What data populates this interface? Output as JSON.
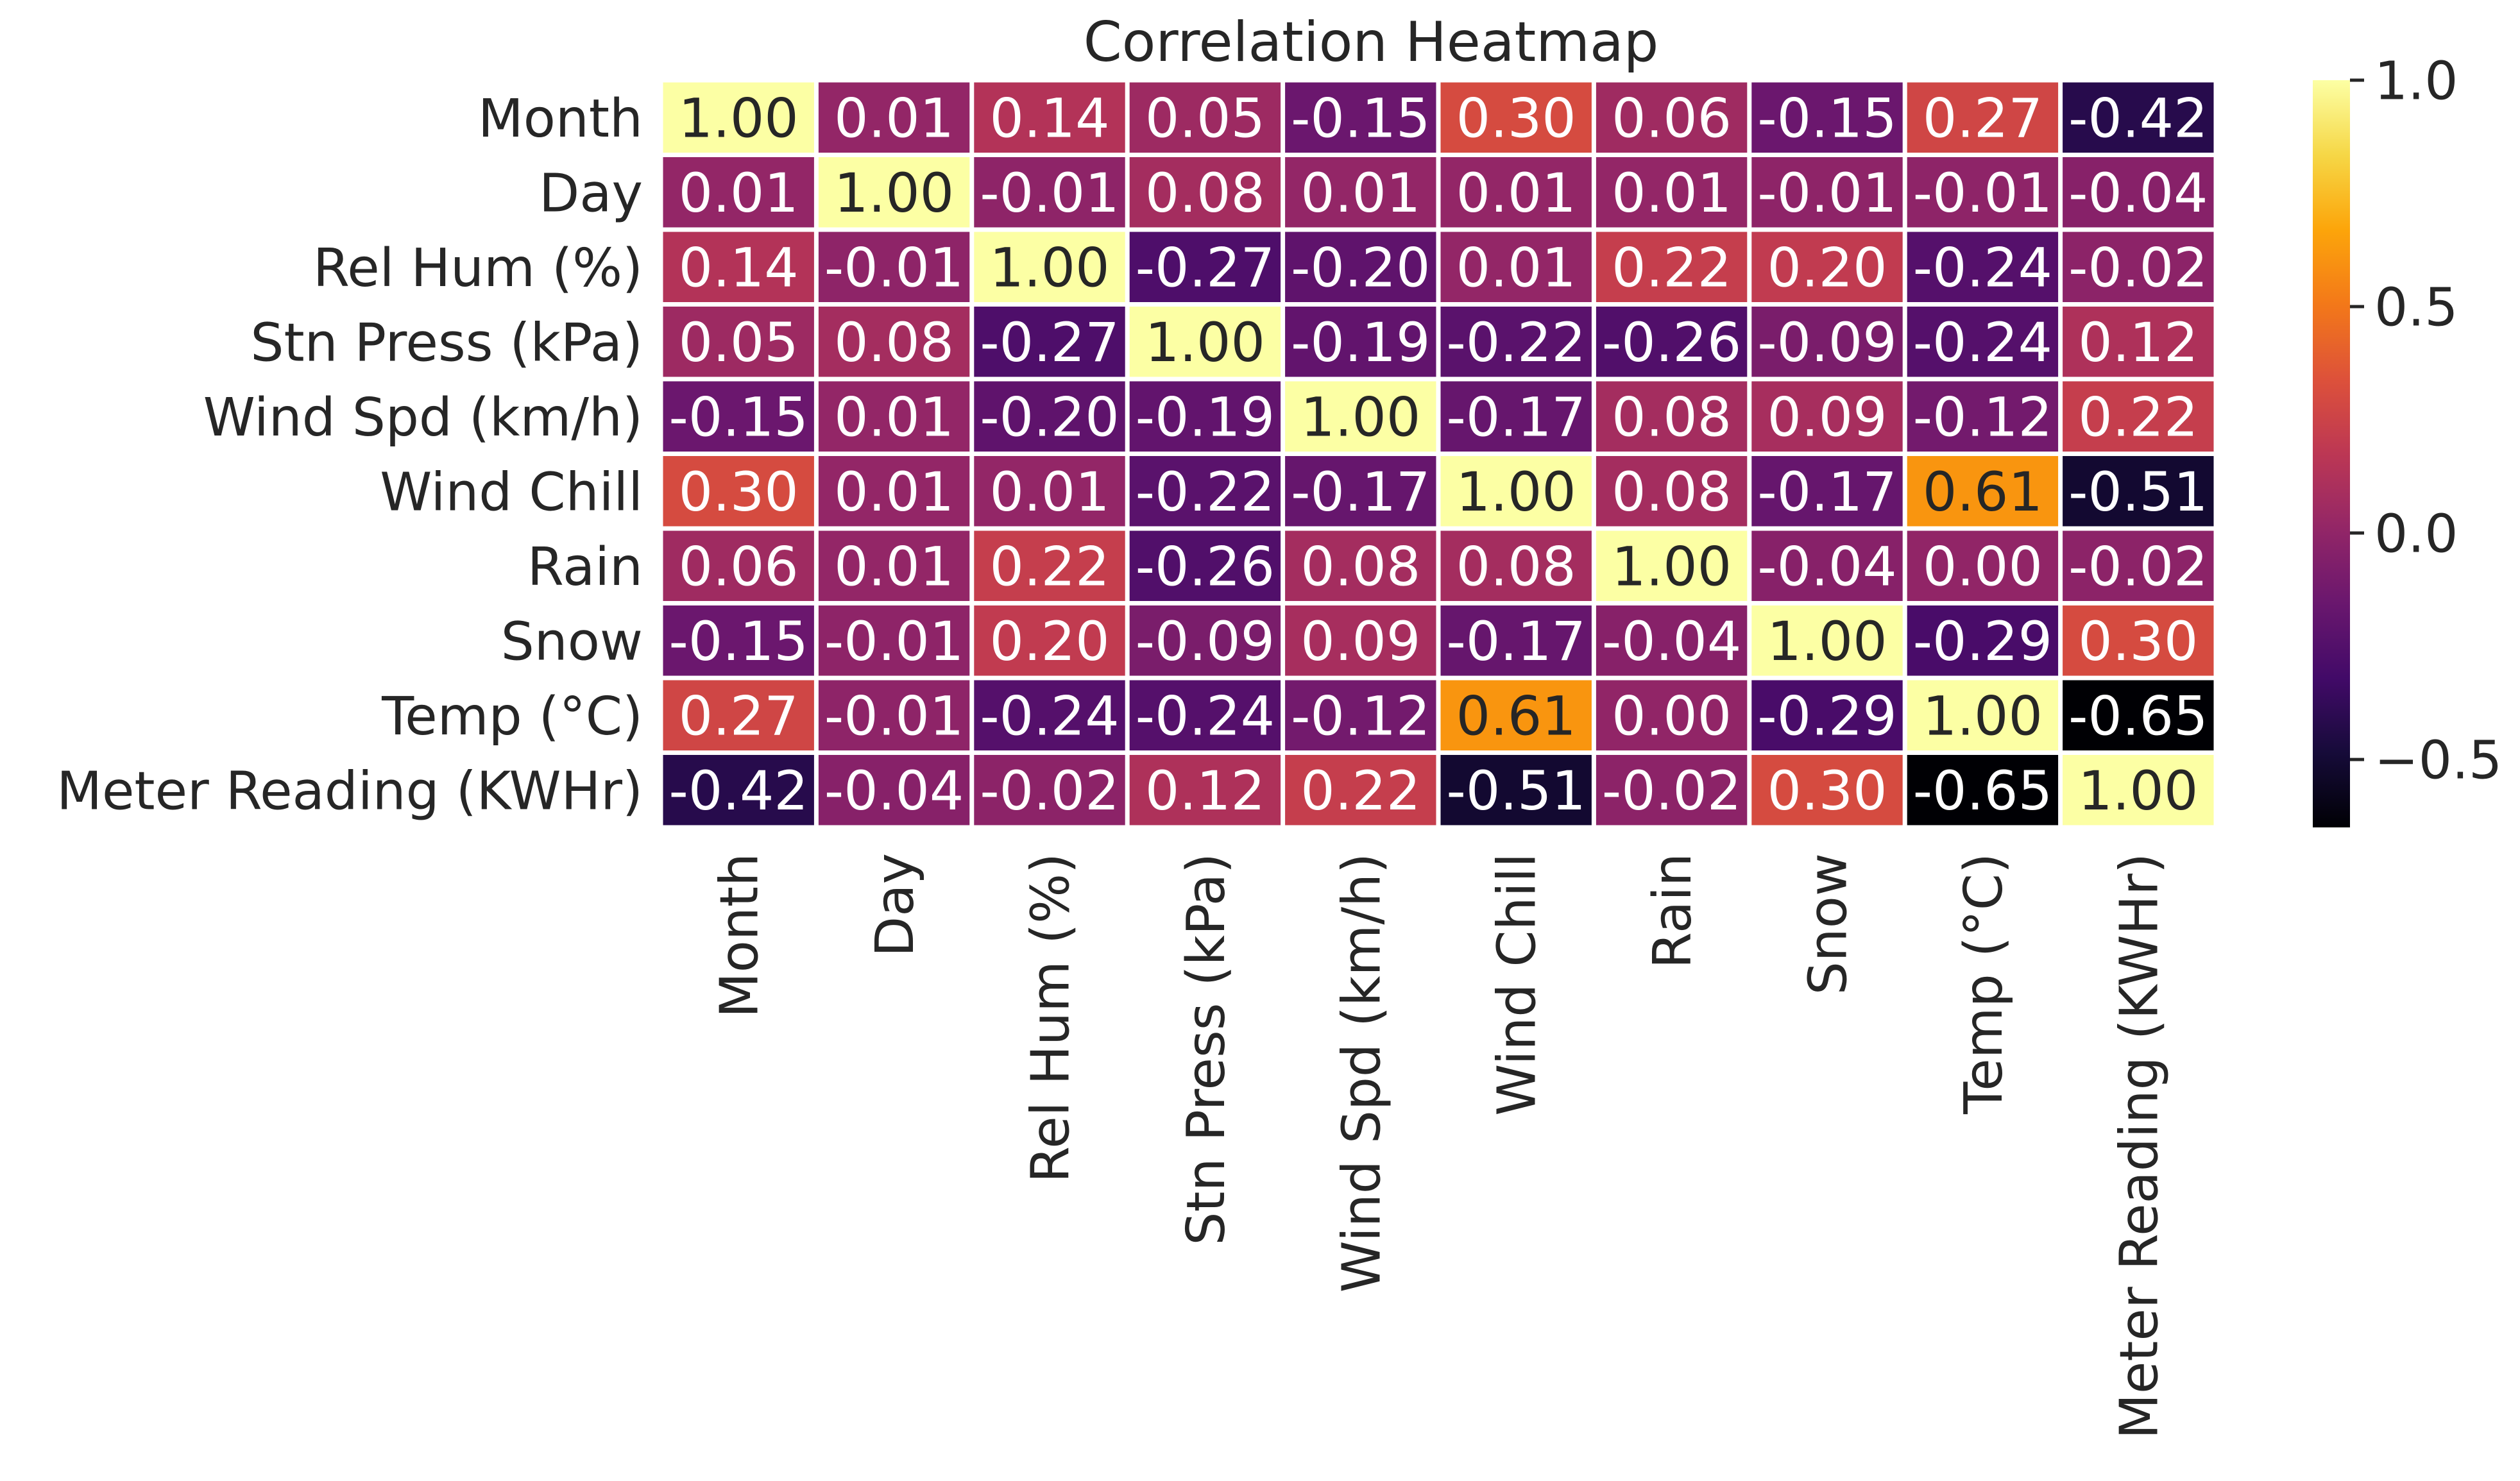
{
  "chart_data": {
    "type": "heatmap",
    "title": "Correlation Heatmap",
    "colormap": "inferno",
    "value_range": [
      -0.65,
      1.0
    ],
    "colorbar": {
      "ticks": [
        1.0,
        0.5,
        0.0,
        -0.5
      ],
      "tick_labels": [
        "1.0",
        "0.5",
        "0.0",
        "−0.5"
      ]
    },
    "row_labels": [
      "Month",
      "Day",
      "Rel Hum (%)",
      "Stn Press (kPa)",
      "Wind Spd (km/h)",
      "Wind Chill",
      "Rain",
      "Snow",
      "Temp (°C)",
      "Meter Reading (KWHr)"
    ],
    "col_labels": [
      "Month",
      "Day",
      "Rel Hum (%)",
      "Stn Press (kPa)",
      "Wind Spd (km/h)",
      "Wind Chill",
      "Rain",
      "Snow",
      "Temp (°C)",
      "Meter Reading (KWHr)"
    ],
    "values": [
      [
        1.0,
        0.01,
        0.14,
        0.05,
        -0.15,
        0.3,
        0.06,
        -0.15,
        0.27,
        -0.42
      ],
      [
        0.01,
        1.0,
        -0.01,
        0.08,
        0.01,
        0.01,
        0.01,
        -0.01,
        -0.01,
        -0.04
      ],
      [
        0.14,
        -0.01,
        1.0,
        -0.27,
        -0.2,
        0.01,
        0.22,
        0.2,
        -0.24,
        -0.02
      ],
      [
        0.05,
        0.08,
        -0.27,
        1.0,
        -0.19,
        -0.22,
        -0.26,
        -0.09,
        -0.24,
        0.12
      ],
      [
        -0.15,
        0.01,
        -0.2,
        -0.19,
        1.0,
        -0.17,
        0.08,
        0.09,
        -0.12,
        0.22
      ],
      [
        0.3,
        0.01,
        0.01,
        -0.22,
        -0.17,
        1.0,
        0.08,
        -0.17,
        0.61,
        -0.51
      ],
      [
        0.06,
        0.01,
        0.22,
        -0.26,
        0.08,
        0.08,
        1.0,
        -0.04,
        0.0,
        -0.02
      ],
      [
        -0.15,
        -0.01,
        0.2,
        -0.09,
        0.09,
        -0.17,
        -0.04,
        1.0,
        -0.29,
        0.3
      ],
      [
        0.27,
        -0.01,
        -0.24,
        -0.24,
        -0.12,
        0.61,
        0.0,
        -0.29,
        1.0,
        -0.65
      ],
      [
        -0.42,
        -0.04,
        -0.02,
        0.12,
        0.22,
        -0.51,
        -0.02,
        0.3,
        -0.65,
        1.0
      ]
    ],
    "cell_labels": [
      [
        "1.00",
        "0.01",
        "0.14",
        "0.05",
        "-0.15",
        "0.30",
        "0.06",
        "-0.15",
        "0.27",
        "-0.42"
      ],
      [
        "0.01",
        "1.00",
        "-0.01",
        "0.08",
        "0.01",
        "0.01",
        "0.01",
        "-0.01",
        "-0.01",
        "-0.04"
      ],
      [
        "0.14",
        "-0.01",
        "1.00",
        "-0.27",
        "-0.20",
        "0.01",
        "0.22",
        "0.20",
        "-0.24",
        "-0.02"
      ],
      [
        "0.05",
        "0.08",
        "-0.27",
        "1.00",
        "-0.19",
        "-0.22",
        "-0.26",
        "-0.09",
        "-0.24",
        "0.12"
      ],
      [
        "-0.15",
        "0.01",
        "-0.20",
        "-0.19",
        "1.00",
        "-0.17",
        "0.08",
        "0.09",
        "-0.12",
        "0.22"
      ],
      [
        "0.30",
        "0.01",
        "0.01",
        "-0.22",
        "-0.17",
        "1.00",
        "0.08",
        "-0.17",
        "0.61",
        "-0.51"
      ],
      [
        "0.06",
        "0.01",
        "0.22",
        "-0.26",
        "0.08",
        "0.08",
        "1.00",
        "-0.04",
        "0.00",
        "-0.02"
      ],
      [
        "-0.15",
        "-0.01",
        "0.20",
        "-0.09",
        "0.09",
        "-0.17",
        "-0.04",
        "1.00",
        "-0.29",
        "0.30"
      ],
      [
        "0.27",
        "-0.01",
        "-0.24",
        "-0.24",
        "-0.12",
        "0.61",
        "0.00",
        "-0.29",
        "1.00",
        "-0.65"
      ],
      [
        "-0.42",
        "-0.04",
        "-0.02",
        "0.12",
        "0.22",
        "-0.51",
        "-0.02",
        "0.30",
        "-0.65",
        "1.00"
      ]
    ],
    "grid_line_color": "#ffffff",
    "text_color_light": "#ffffff",
    "text_color_dark": "#262626"
  }
}
